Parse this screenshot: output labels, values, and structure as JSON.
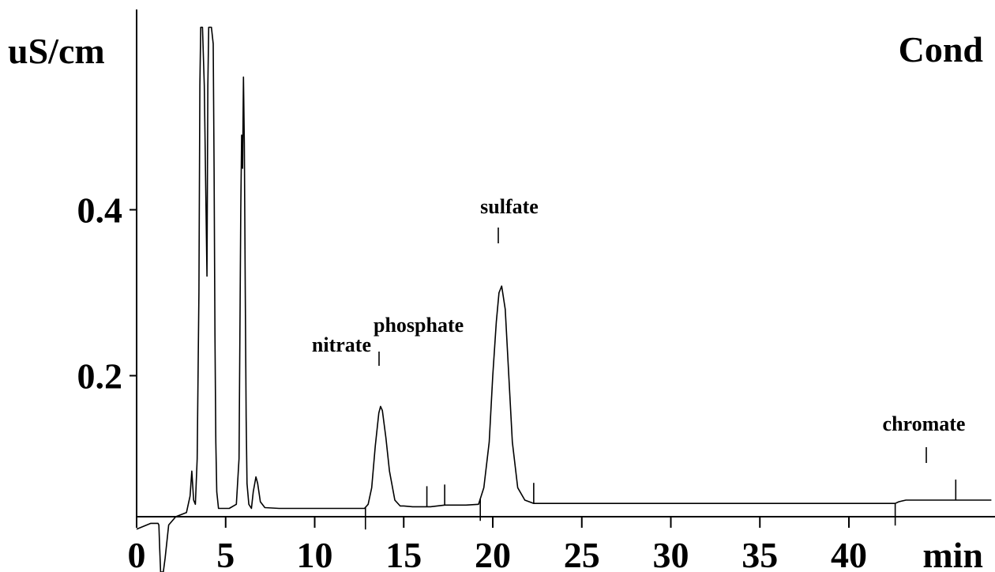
{
  "chart_data": {
    "type": "line",
    "title": "",
    "detector_label": "Cond",
    "ylabel": "uS/cm",
    "xlabel": "min",
    "xlim": [
      0,
      48
    ],
    "ylim": [
      -0.1,
      0.6
    ],
    "x_ticks": [
      0,
      5,
      10,
      15,
      20,
      25,
      30,
      35,
      40
    ],
    "y_ticks": [
      0.2,
      0.4
    ],
    "y_tick_labels": [
      "0.2",
      "0.4"
    ],
    "grid": false,
    "series": [
      {
        "x": [
          0,
          0.8,
          1.2,
          1.25,
          1.3,
          1.35,
          1.4,
          1.5,
          1.6,
          1.8,
          2.2,
          2.8,
          3.0,
          3.1,
          3.2,
          3.3,
          3.4,
          3.5,
          3.55,
          3.6,
          3.7,
          3.8,
          3.9,
          3.95,
          4.0,
          4.05,
          4.1,
          4.2,
          4.3,
          4.35,
          4.4,
          4.45,
          4.5,
          4.6,
          4.8,
          5.2,
          5.6,
          5.75,
          5.8,
          5.85,
          5.9,
          5.95,
          6.0,
          6.05,
          6.1,
          6.15,
          6.2,
          6.3,
          6.45,
          6.55,
          6.7,
          6.8,
          6.95,
          7.2,
          8.0,
          10.0,
          12.0,
          12.8,
          13.0,
          13.2,
          13.4,
          13.6,
          13.7,
          13.8,
          14.0,
          14.2,
          14.5,
          14.8,
          15.0,
          15.5,
          16.5,
          17.3,
          18.5,
          19.2,
          19.5,
          19.8,
          20.0,
          20.2,
          20.35,
          20.5,
          20.7,
          20.9,
          21.1,
          21.4,
          21.8,
          22.3,
          25.0,
          30.0,
          35.0,
          40.0,
          42.6,
          42.8,
          43.2,
          45.0,
          47.0,
          48.0
        ],
        "values": [
          0.015,
          0.022,
          0.022,
          0.02,
          -0.01,
          -0.08,
          -0.12,
          -0.1,
          -0.02,
          0.02,
          0.03,
          0.035,
          0.055,
          0.085,
          0.05,
          0.045,
          0.1,
          0.3,
          0.55,
          0.62,
          0.62,
          0.55,
          0.4,
          0.32,
          0.55,
          0.62,
          0.62,
          0.62,
          0.6,
          0.45,
          0.25,
          0.12,
          0.06,
          0.04,
          0.04,
          0.04,
          0.045,
          0.1,
          0.25,
          0.4,
          0.49,
          0.45,
          0.56,
          0.48,
          0.3,
          0.15,
          0.07,
          0.045,
          0.04,
          0.06,
          0.078,
          0.07,
          0.048,
          0.041,
          0.04,
          0.04,
          0.04,
          0.04,
          0.045,
          0.065,
          0.115,
          0.155,
          0.163,
          0.158,
          0.125,
          0.085,
          0.05,
          0.043,
          0.043,
          0.042,
          0.042,
          0.044,
          0.044,
          0.045,
          0.065,
          0.12,
          0.2,
          0.265,
          0.3,
          0.308,
          0.28,
          0.2,
          0.12,
          0.065,
          0.05,
          0.046,
          0.046,
          0.046,
          0.046,
          0.046,
          0.046,
          0.048,
          0.05,
          0.05,
          0.05,
          0.05
        ]
      }
    ],
    "peak_labels": [
      {
        "label": "nitrate",
        "x": 13.6,
        "y": 0.163
      },
      {
        "label": "phosphate",
        "x": 17.3,
        "y": 0.044
      },
      {
        "label": "sulfate",
        "x": 20.4,
        "y": 0.308
      },
      {
        "label": "chromate",
        "x": 44.4,
        "y": 0.05
      }
    ],
    "integration_marks": [
      {
        "x": 12.85,
        "dir": "down"
      },
      {
        "x": 16.3,
        "dir": "up"
      },
      {
        "x": 17.3,
        "dir": "up"
      },
      {
        "x": 19.3,
        "dir": "down"
      },
      {
        "x": 22.3,
        "dir": "up"
      },
      {
        "x": 42.6,
        "dir": "down"
      },
      {
        "x": 46.0,
        "dir": "up"
      }
    ]
  }
}
